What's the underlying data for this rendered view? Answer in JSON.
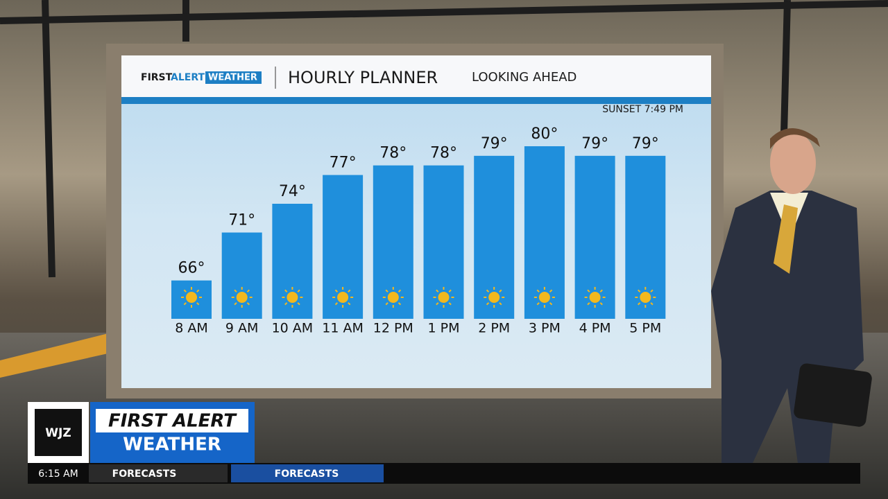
{
  "header": {
    "logo_first": "FIRST",
    "logo_alert": "ALERT",
    "logo_weather": "WEATHER",
    "title": "HOURLY PLANNER",
    "subtitle": "LOOKING AHEAD",
    "sunset": "SUNSET 7:49 PM"
  },
  "chart_data": {
    "type": "bar",
    "categories": [
      "8 AM",
      "9 AM",
      "10 AM",
      "11 AM",
      "12 PM",
      "1 PM",
      "2 PM",
      "3 PM",
      "4 PM",
      "5 PM"
    ],
    "values": [
      66,
      71,
      74,
      77,
      78,
      78,
      79,
      80,
      79,
      79
    ],
    "value_labels": [
      "66°",
      "71°",
      "74°",
      "77°",
      "78°",
      "78°",
      "79°",
      "80°",
      "79°",
      "79°"
    ],
    "color": "#1f8fdc",
    "ylim": [
      62,
      80
    ]
  },
  "lower_third": {
    "station": "WJZ",
    "line1": "FIRST ALERT",
    "line2": "WEATHER"
  },
  "ticker": {
    "time": "6:15 AM",
    "label": "FORECASTS",
    "highlight": "FORECASTS"
  }
}
